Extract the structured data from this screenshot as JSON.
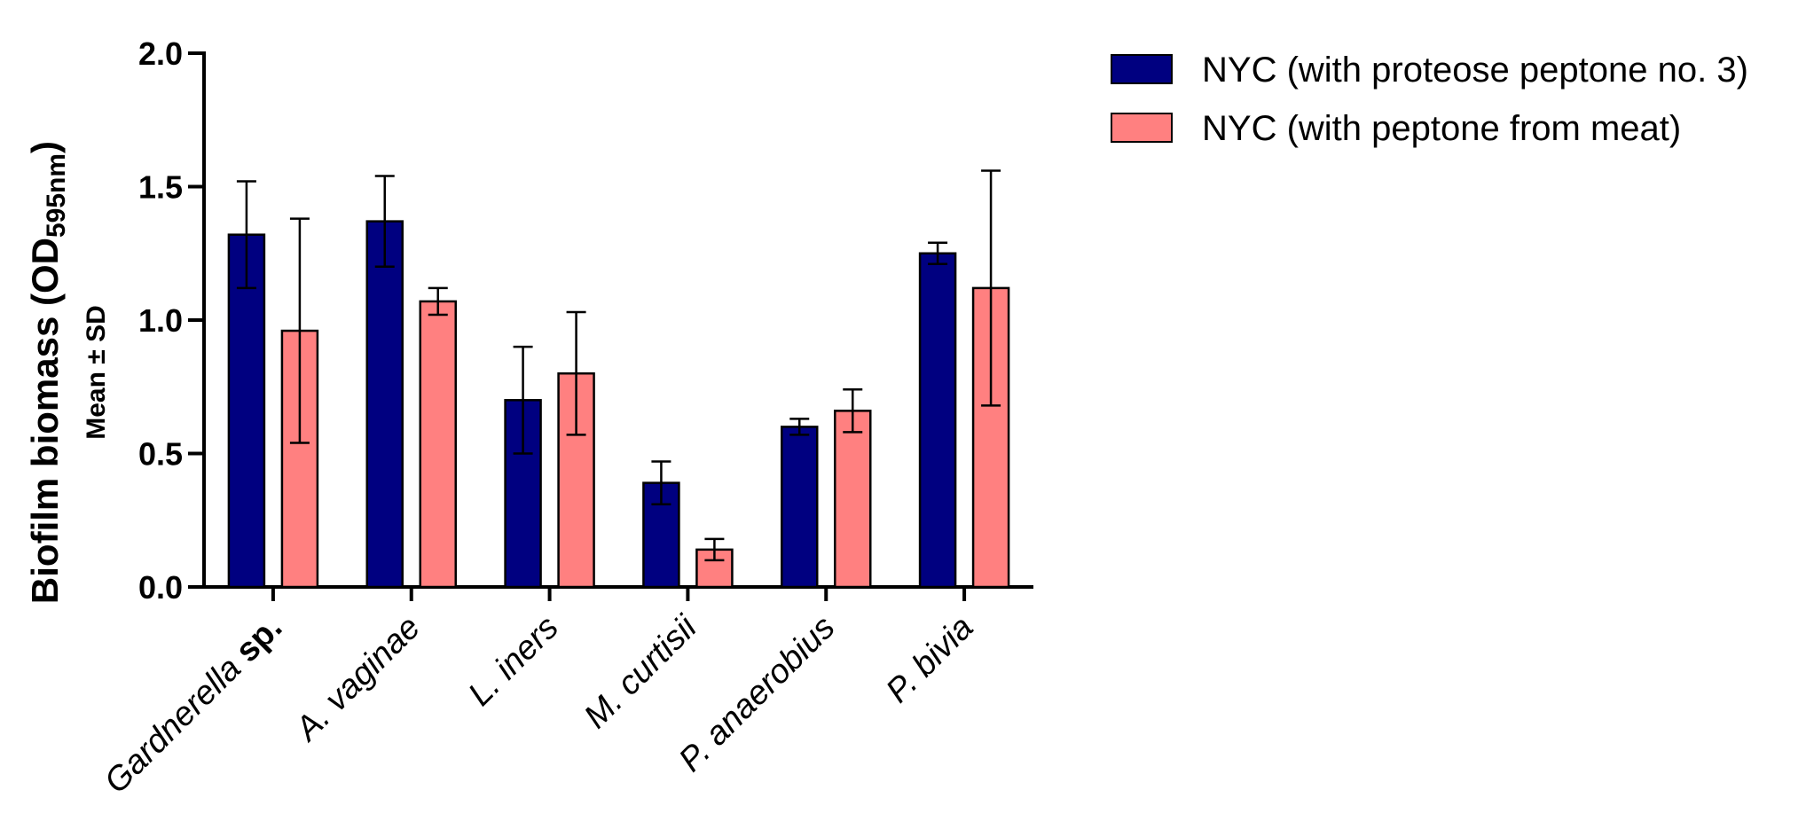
{
  "chart_data": {
    "type": "bar",
    "categories": [
      {
        "italic": "Gardnerella",
        "normal": "sp."
      },
      {
        "italic": "A. vaginae",
        "normal": ""
      },
      {
        "italic": "L. iners",
        "normal": ""
      },
      {
        "italic": "M. curtisii",
        "normal": ""
      },
      {
        "italic": "P. anaerobius",
        "normal": ""
      },
      {
        "italic": "P. bivia",
        "normal": ""
      }
    ],
    "series": [
      {
        "name": "NYC (with proteose peptone no. 3)",
        "color": "#000080",
        "values": [
          1.32,
          1.37,
          0.7,
          0.39,
          0.6,
          1.25
        ],
        "errors": [
          0.2,
          0.17,
          0.2,
          0.08,
          0.03,
          0.04
        ]
      },
      {
        "name": "NYC (with peptone from meat)",
        "color": "#FF8080",
        "values": [
          0.96,
          1.07,
          0.8,
          0.14,
          0.66,
          1.12
        ],
        "errors": [
          0.42,
          0.05,
          0.23,
          0.04,
          0.08,
          0.44
        ]
      }
    ],
    "ylabel": {
      "main": "Biofilm biomass (OD",
      "subscript": "595nm",
      "close": ")",
      "secondary": "Mean ± SD"
    },
    "ylim": [
      0,
      2.0
    ],
    "yticks": [
      "0.0",
      "0.5",
      "1.0",
      "1.5",
      "2.0"
    ],
    "legend_position": "top-right",
    "grid": false
  }
}
